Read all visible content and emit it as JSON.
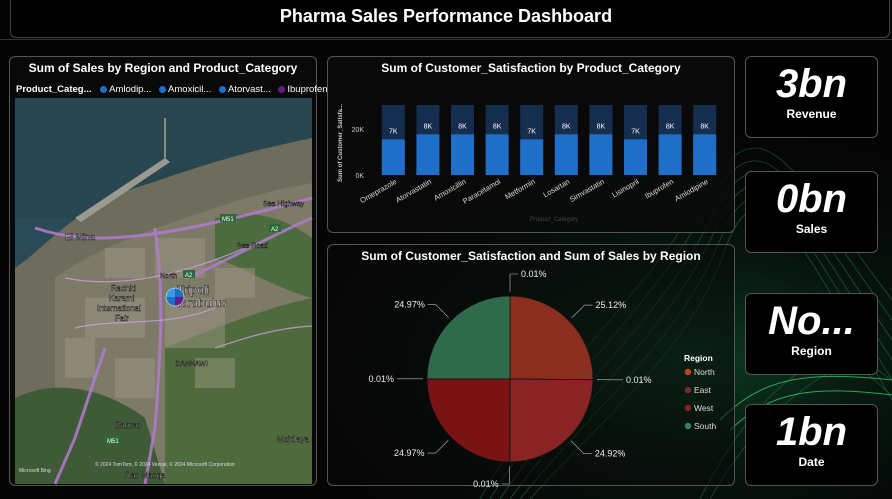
{
  "page": {
    "title": "Pharma Sales Performance Dashboard"
  },
  "map_card": {
    "title": "Sum of Sales by Region and Product_Category",
    "legend_label": "Product_Categ...",
    "legend_items": [
      {
        "label": "Amlodip...",
        "color": "#1f6fc9"
      },
      {
        "label": "Amoxicil...",
        "color": "#1f6fc9"
      },
      {
        "label": "Atorvast...",
        "color": "#1f6fc9"
      },
      {
        "label": "Ibuprofen",
        "color": "#6a1a8a"
      }
    ],
    "places": {
      "el_mina": "El Mina",
      "tripoli": "Tripoli",
      "tarabulus": "Tarabulus",
      "north": "North",
      "rachid": "Rachid",
      "karami": "Karami",
      "international": "International",
      "fair": "Fair",
      "dannawi": "DANNAWI",
      "bahsas": "Bahsas",
      "mejdlaya": "Mejdlaya",
      "ras_masqa": "Ras Masqa",
      "sea_highway": "Sea Highway",
      "sea_road": "Sea Road",
      "a2": "A2",
      "m51": "M51"
    },
    "attribution": "© 2024 TomTom, © 2024 Vexcel, © 2024 Microsoft Corporation",
    "bing": "Microsoft Bing"
  },
  "chart_data": [
    {
      "type": "bar",
      "title": "Sum of Customer_Satisfaction by Product_Category",
      "ylabel": "Sum of Customer_Satisfa...",
      "xlabel": "Product_Category",
      "categories": [
        "Omeprazole",
        "Atorvastatin",
        "Amoxicillin",
        "Paracetamol",
        "Metformin",
        "Losartan",
        "Simvastatin",
        "Lisinopril",
        "Ibuprofen",
        "Amlodipine"
      ],
      "values": [
        7,
        8,
        8,
        8,
        7,
        8,
        8,
        7,
        8,
        8
      ],
      "data_labels": [
        "7K",
        "8K",
        "8K",
        "8K",
        "7K",
        "8K",
        "8K",
        "7K",
        "8K",
        "8K"
      ],
      "y_ticks": [
        "0K",
        "20K"
      ],
      "color": "#1f6fc9"
    },
    {
      "type": "pie",
      "title": "Sum of Customer_Satisfaction and Sum of Sales by Region",
      "legend_title": "Region",
      "slices": [
        {
          "name": "North",
          "value": 0.01,
          "label": "0.01%",
          "color": "#c0441f"
        },
        {
          "name": "North",
          "value": 25.12,
          "label": "25.12%",
          "color": "#8a2e1f"
        },
        {
          "name": "East",
          "value": 0.01,
          "label": "0.01%",
          "color": "#7a2a22"
        },
        {
          "name": "East",
          "value": 24.92,
          "label": "24.92%",
          "color": "#8a2424"
        },
        {
          "name": "West",
          "value": 0.01,
          "label": "0.01%",
          "color": "#8a2424"
        },
        {
          "name": "West",
          "value": 24.97,
          "label": "24.97%",
          "color": "#7a1414"
        },
        {
          "name": "South",
          "value": 0.01,
          "label": "0.01%",
          "color": "#2f6a4a"
        },
        {
          "name": "South",
          "value": 24.97,
          "label": "24.97%",
          "color": "#2f6a4a"
        }
      ],
      "legend": [
        {
          "label": "North",
          "color": "#c0441f"
        },
        {
          "label": "East",
          "color": "#7a2a22"
        },
        {
          "label": "West",
          "color": "#8a2424"
        },
        {
          "label": "South",
          "color": "#2f8a5a"
        }
      ]
    }
  ],
  "kpis": [
    {
      "value": "3bn",
      "label": "Revenue"
    },
    {
      "value": "0bn",
      "label": "Sales"
    },
    {
      "value": "No...",
      "label": "Region"
    },
    {
      "value": "1bn",
      "label": "Date"
    }
  ]
}
